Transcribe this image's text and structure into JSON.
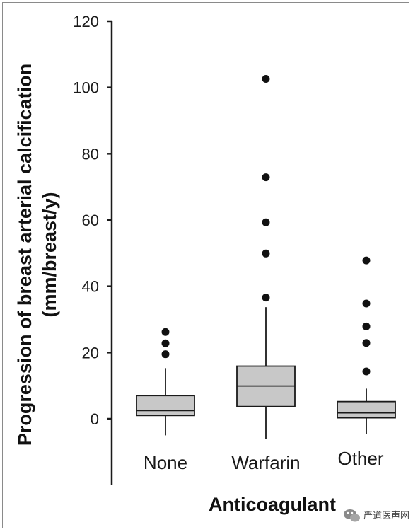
{
  "chart_data": {
    "type": "box",
    "title": "",
    "xlabel": "Anticoagulant",
    "ylabel_line1": "Progression of breast arterial calcification",
    "ylabel_line2": "(mm/breast/y)",
    "ylim": [
      -20,
      120
    ],
    "yticks": [
      0,
      20,
      40,
      60,
      80,
      100,
      120
    ],
    "ytick_labels": [
      "0",
      "20",
      "40",
      "60",
      "80",
      "100",
      "120"
    ],
    "grid": false,
    "categories": [
      "None",
      "Warfarin",
      "Other"
    ],
    "boxes": [
      {
        "name": "None",
        "whisker_low": -5,
        "q1": 1,
        "median": 2.5,
        "q3": 7,
        "whisker_high": 15.3,
        "outliers": [
          19.5,
          22.8,
          26.2
        ]
      },
      {
        "name": "Warfarin",
        "whisker_low": -6,
        "q1": 3.7,
        "median": 9.9,
        "q3": 15.9,
        "whisker_high": 33.7,
        "outliers": [
          36.6,
          49.9,
          59.3,
          72.9,
          102.6
        ]
      },
      {
        "name": "Other",
        "whisker_low": -4.5,
        "q1": 0.3,
        "median": 1.8,
        "q3": 5.2,
        "whisker_high": 9.1,
        "outliers": [
          14.3,
          22.9,
          27.9,
          34.8,
          47.8
        ]
      }
    ],
    "colors": {
      "box_fill": "#c8c8c8",
      "line": "#1a1a1a",
      "outlier": "#111111"
    }
  },
  "watermark": {
    "text": "严道医声网",
    "icon": "wechat-icon"
  }
}
